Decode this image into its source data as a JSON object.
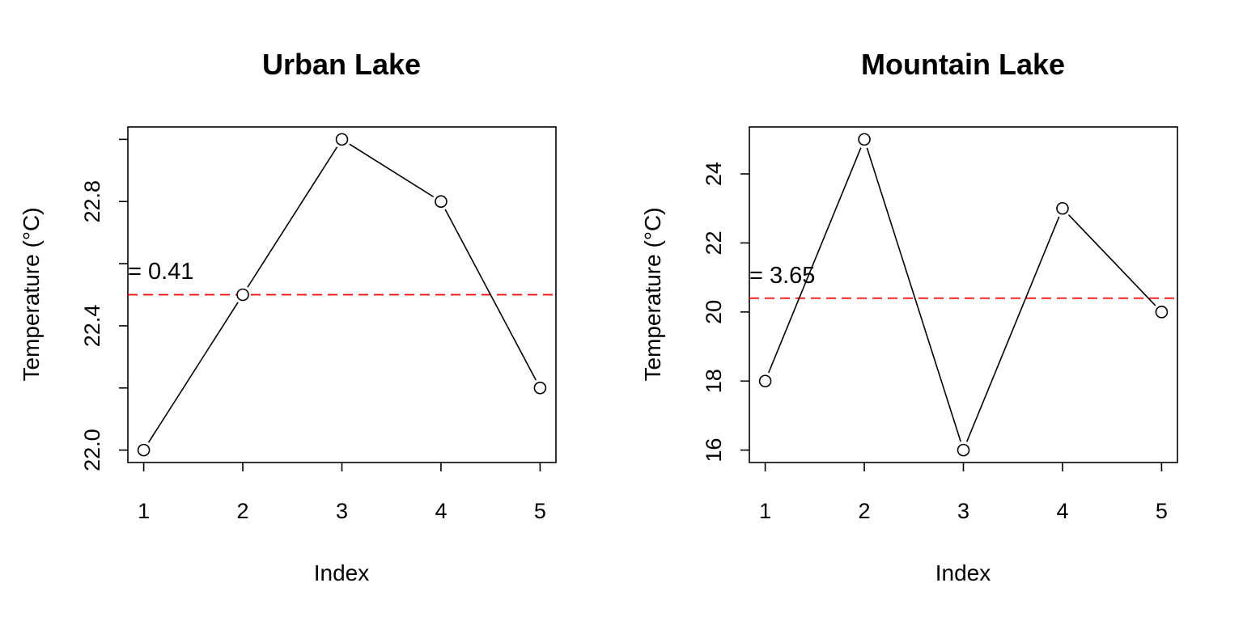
{
  "chart_data": [
    {
      "type": "line",
      "title": "Urban Lake",
      "xlabel": "Index",
      "ylabel": "Temperature (°C)",
      "x": [
        1,
        2,
        3,
        4,
        5
      ],
      "values": [
        22.0,
        22.5,
        23.0,
        22.8,
        22.2
      ],
      "xticks": [
        "1",
        "2",
        "3",
        "4",
        "5"
      ],
      "yticks": [
        22.0,
        22.2,
        22.4,
        22.6,
        22.8,
        23.0
      ],
      "ytick_labels": [
        "22.0",
        "",
        "22.4",
        "",
        "22.8",
        ""
      ],
      "xlim": [
        0.84,
        5.16
      ],
      "ylim": [
        21.96,
        23.04
      ],
      "mean_line": {
        "value": 22.5,
        "color": "#ff0000",
        "style": "dashed"
      },
      "annotation": "= 0.41",
      "line_color": "#000000",
      "marker": "open-circle",
      "grid": false
    },
    {
      "type": "line",
      "title": "Mountain Lake",
      "xlabel": "Index",
      "ylabel": "Temperature (°C)",
      "x": [
        1,
        2,
        3,
        4,
        5
      ],
      "values": [
        18,
        25,
        16,
        23,
        20
      ],
      "xticks": [
        "1",
        "2",
        "3",
        "4",
        "5"
      ],
      "yticks": [
        16,
        18,
        20,
        22,
        24
      ],
      "ytick_labels": [
        "16",
        "18",
        "20",
        "22",
        "24"
      ],
      "xlim": [
        0.84,
        5.16
      ],
      "ylim": [
        15.64,
        25.36
      ],
      "mean_line": {
        "value": 20.4,
        "color": "#ff0000",
        "style": "dashed"
      },
      "annotation": "= 3.65",
      "line_color": "#000000",
      "marker": "open-circle",
      "grid": false
    }
  ]
}
